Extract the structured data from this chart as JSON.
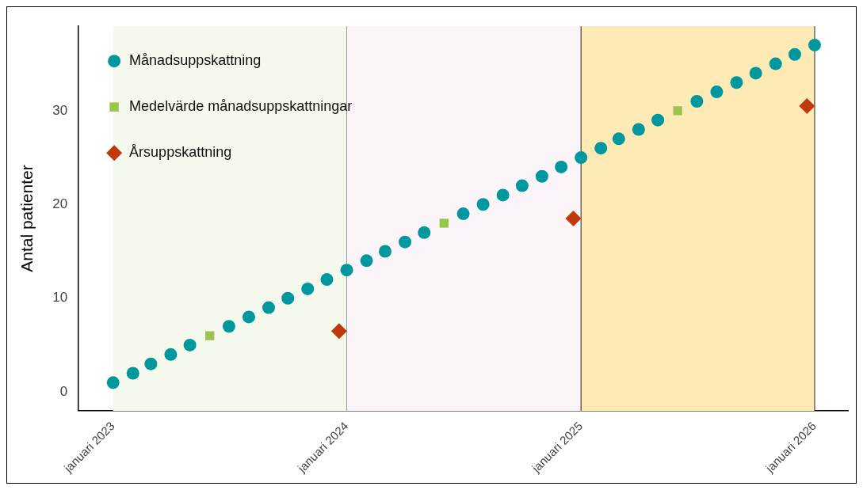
{
  "chart_data": {
    "type": "scatter",
    "ylabel": "Antal patienter",
    "series": [
      {
        "name": "Månadsuppskattning",
        "color": "#00979f",
        "marker": "circle",
        "x": [
          "2023-01",
          "2023-02",
          "2023-03",
          "2023-04",
          "2023-05",
          "2023-06",
          "2023-07",
          "2023-08",
          "2023-09",
          "2023-10",
          "2023-11",
          "2023-12",
          "2024-01",
          "2024-02",
          "2024-03",
          "2024-04",
          "2024-05",
          "2024-06",
          "2024-07",
          "2024-08",
          "2024-09",
          "2024-10",
          "2024-11",
          "2024-12",
          "2025-01",
          "2025-02",
          "2025-03",
          "2025-04",
          "2025-05",
          "2025-06",
          "2025-07",
          "2025-08",
          "2025-09",
          "2025-10",
          "2025-11",
          "2025-12",
          "2026-01"
        ],
        "values": [
          1,
          2,
          3,
          4,
          5,
          null,
          7,
          8,
          9,
          10,
          11,
          12,
          13,
          14,
          15,
          16,
          17,
          null,
          19,
          20,
          21,
          22,
          23,
          24,
          25,
          26,
          27,
          28,
          29,
          null,
          31,
          32,
          33,
          34,
          35,
          36,
          37
        ]
      },
      {
        "name": "Medelvärde månadsuppskattningar",
        "color": "#9bc54a",
        "marker": "square",
        "x": [
          "2023-06",
          "2024-06",
          "2025-06"
        ],
        "values": [
          6,
          18,
          30
        ]
      },
      {
        "name": "Årsuppskattning",
        "color": "#c0390b",
        "marker": "diamond",
        "x": [
          "2023-12-20",
          "2024-12-20",
          "2025-12-20"
        ],
        "values": [
          6.5,
          18.5,
          30.5
        ]
      }
    ],
    "xlim": [
      "2022-11-08",
      "2026-02-22"
    ],
    "xticks": [
      {
        "value": "2023-01",
        "label": "januari 2023"
      },
      {
        "value": "2024-01",
        "label": "januari 2024"
      },
      {
        "value": "2025-01",
        "label": "januari 2025"
      },
      {
        "value": "2026-01",
        "label": "januari 2026"
      }
    ],
    "ylim": [
      -2,
      39
    ],
    "yticks": [
      0,
      10,
      20,
      30
    ],
    "bands": [
      {
        "axis": "x",
        "from": "2023-01",
        "to": "2024-01",
        "color": "#f5f8ed"
      },
      {
        "axis": "x",
        "from": "2024-01",
        "to": "2025-01",
        "color": "#fbf4f9"
      },
      {
        "axis": "x",
        "from": "2025-01",
        "to": "2026-01",
        "color": "#fdeab5"
      }
    ],
    "ref_lines": [
      {
        "axis": "x",
        "value": "2024-01",
        "color": "#999999"
      },
      {
        "axis": "x",
        "value": "2025-01",
        "color": "#222222"
      },
      {
        "axis": "x",
        "value": "2026-01",
        "color": "#222222"
      }
    ],
    "grid": false,
    "legend": "top left"
  }
}
